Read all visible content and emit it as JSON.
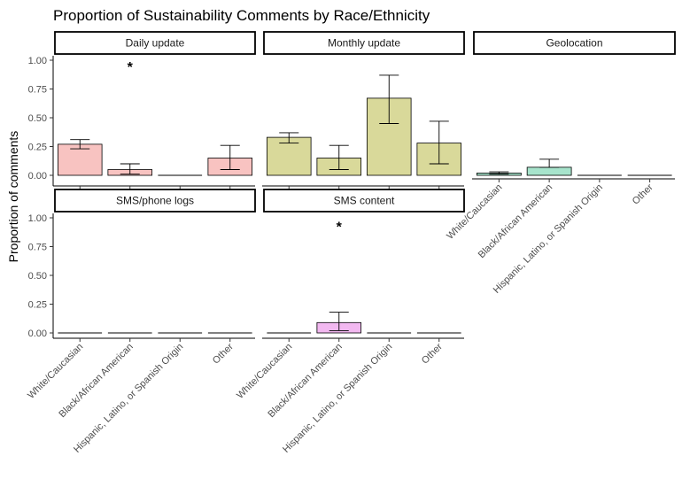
{
  "chart_data": {
    "type": "bar",
    "title": "Proportion of Sustainability Comments by Race/Ethnicity",
    "ylabel": "Proportion of comments",
    "xlabel": "",
    "ylim": [
      0,
      1.05
    ],
    "yticks": [
      "0.00",
      "0.25",
      "0.50",
      "0.75",
      "1.00"
    ],
    "categories": [
      "White/Caucasian",
      "Black/African American",
      "Hispanic, Latino, or Spanish Origin",
      "Other"
    ],
    "grid": false,
    "legend": "none",
    "panels": [
      {
        "name": "Daily update",
        "color": "#f8c3c1",
        "values": [
          0.27,
          0.05,
          0.0,
          0.15
        ],
        "err_low": [
          0.23,
          0.01,
          null,
          0.05
        ],
        "err_high": [
          0.31,
          0.1,
          null,
          0.26
        ],
        "star": "*",
        "star_category": 1,
        "star_y": 0.97
      },
      {
        "name": "Monthly update",
        "color": "#d9d99a",
        "values": [
          0.33,
          0.15,
          0.67,
          0.28
        ],
        "err_low": [
          0.28,
          0.05,
          0.45,
          0.1
        ],
        "err_high": [
          0.37,
          0.26,
          0.87,
          0.47
        ],
        "star": "",
        "star_category": null,
        "star_y": null
      },
      {
        "name": "Geolocation",
        "color": "#a7e4cc",
        "values": [
          0.02,
          0.07,
          0.0,
          0.0
        ],
        "err_low": [
          0.01,
          0.07,
          null,
          null
        ],
        "err_high": [
          0.03,
          0.14,
          null,
          null
        ],
        "star": "",
        "star_category": null,
        "star_y": null
      },
      {
        "name": "SMS/phone logs",
        "color": "#dddddd",
        "values": [
          0.0,
          0.0,
          0.0,
          0.0
        ],
        "err_low": [
          null,
          null,
          null,
          null
        ],
        "err_high": [
          null,
          null,
          null,
          null
        ],
        "star": "",
        "star_category": null,
        "star_y": null
      },
      {
        "name": "SMS content",
        "color": "#f2b8f0",
        "values": [
          0.0,
          0.09,
          0.0,
          0.0
        ],
        "err_low": [
          null,
          0.02,
          null,
          null
        ],
        "err_high": [
          null,
          0.18,
          null,
          null
        ],
        "star": "*",
        "star_category": 1,
        "star_y": 0.95
      }
    ]
  }
}
